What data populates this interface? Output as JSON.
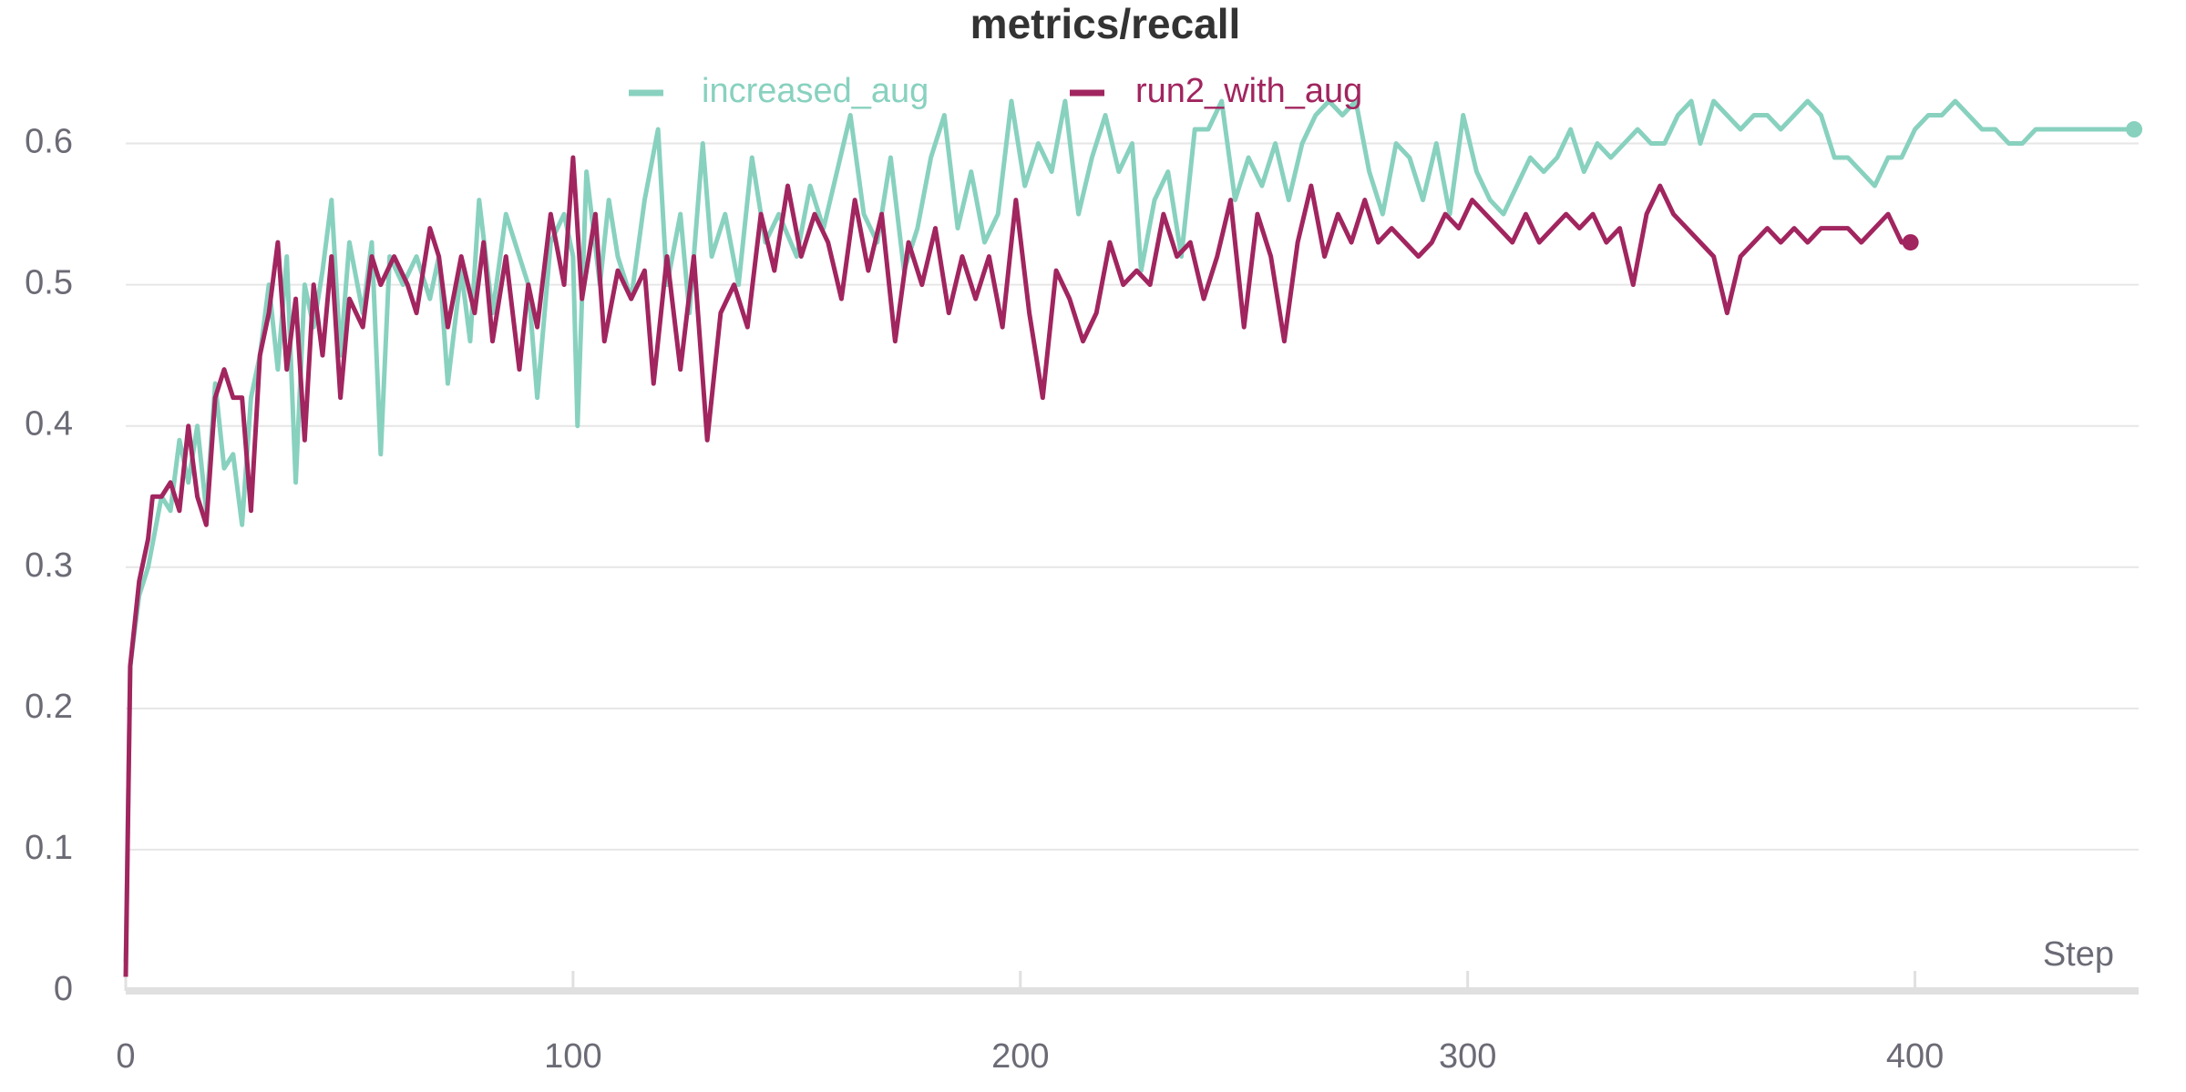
{
  "chart_data": {
    "type": "line",
    "title": "metrics/recall",
    "x_label": "Step",
    "xlim": [
      0,
      450
    ],
    "xticks": [
      0,
      100,
      200,
      300,
      400
    ],
    "ylim": [
      0,
      0.65
    ],
    "yticks": [
      0,
      0.1,
      0.2,
      0.3,
      0.4,
      0.5,
      0.6
    ],
    "grid": true,
    "series": [
      {
        "name": "increased_aug",
        "color": "#88d1bf",
        "x": [
          0,
          1,
          3,
          5,
          8,
          10,
          12,
          14,
          16,
          18,
          20,
          22,
          24,
          26,
          28,
          30,
          32,
          34,
          36,
          38,
          40,
          42,
          44,
          46,
          48,
          50,
          53,
          55,
          57,
          59,
          62,
          65,
          68,
          70,
          72,
          75,
          77,
          79,
          82,
          85,
          88,
          90,
          92,
          95,
          98,
          100,
          101,
          103,
          106,
          108,
          110,
          113,
          116,
          119,
          121,
          124,
          126,
          129,
          131,
          134,
          137,
          140,
          143,
          146,
          150,
          153,
          156,
          159,
          162,
          165,
          168,
          171,
          174,
          177,
          180,
          183,
          186,
          189,
          192,
          195,
          198,
          201,
          204,
          207,
          210,
          213,
          216,
          219,
          222,
          225,
          227,
          230,
          233,
          236,
          239,
          242,
          245,
          248,
          251,
          254,
          257,
          260,
          263,
          266,
          269,
          272,
          275,
          278,
          281,
          284,
          287,
          290,
          293,
          296,
          299,
          302,
          305,
          308,
          311,
          314,
          317,
          320,
          323,
          326,
          329,
          332,
          335,
          338,
          341,
          344,
          347,
          350,
          352,
          355,
          358,
          361,
          364,
          367,
          370,
          373,
          376,
          379,
          382,
          385,
          388,
          391,
          394,
          397,
          400,
          403,
          406,
          409,
          412,
          415,
          418,
          421,
          424,
          427,
          430,
          433,
          436,
          439,
          442,
          445,
          449
        ],
        "values": [
          0.02,
          0.23,
          0.28,
          0.3,
          0.35,
          0.34,
          0.39,
          0.36,
          0.4,
          0.34,
          0.43,
          0.37,
          0.38,
          0.33,
          0.42,
          0.45,
          0.5,
          0.44,
          0.52,
          0.36,
          0.5,
          0.47,
          0.51,
          0.56,
          0.45,
          0.53,
          0.48,
          0.53,
          0.38,
          0.52,
          0.5,
          0.52,
          0.49,
          0.52,
          0.43,
          0.51,
          0.46,
          0.56,
          0.48,
          0.55,
          0.52,
          0.5,
          0.42,
          0.53,
          0.55,
          0.52,
          0.4,
          0.58,
          0.5,
          0.56,
          0.52,
          0.49,
          0.56,
          0.61,
          0.5,
          0.55,
          0.48,
          0.6,
          0.52,
          0.55,
          0.5,
          0.59,
          0.53,
          0.55,
          0.52,
          0.57,
          0.54,
          0.58,
          0.62,
          0.55,
          0.53,
          0.59,
          0.51,
          0.54,
          0.59,
          0.62,
          0.54,
          0.58,
          0.53,
          0.55,
          0.63,
          0.57,
          0.6,
          0.58,
          0.63,
          0.55,
          0.59,
          0.62,
          0.58,
          0.6,
          0.51,
          0.56,
          0.58,
          0.52,
          0.61,
          0.61,
          0.63,
          0.56,
          0.59,
          0.57,
          0.6,
          0.56,
          0.6,
          0.62,
          0.63,
          0.62,
          0.63,
          0.58,
          0.55,
          0.6,
          0.59,
          0.56,
          0.6,
          0.55,
          0.62,
          0.58,
          0.56,
          0.55,
          0.57,
          0.59,
          0.58,
          0.59,
          0.61,
          0.58,
          0.6,
          0.59,
          0.6,
          0.61,
          0.6,
          0.6,
          0.62,
          0.63,
          0.6,
          0.63,
          0.62,
          0.61,
          0.62,
          0.62,
          0.61,
          0.62,
          0.63,
          0.62,
          0.59,
          0.59,
          0.58,
          0.57,
          0.59,
          0.59,
          0.61,
          0.62,
          0.62,
          0.63,
          0.62,
          0.61,
          0.61,
          0.6,
          0.6,
          0.61,
          0.61,
          0.61,
          0.61,
          0.61,
          0.61,
          0.61,
          0.61
        ]
      },
      {
        "name": "run2_with_aug",
        "color": "#a1255f",
        "x": [
          0,
          1,
          3,
          5,
          6,
          8,
          10,
          12,
          14,
          16,
          18,
          20,
          22,
          24,
          26,
          28,
          30,
          32,
          34,
          36,
          38,
          40,
          42,
          44,
          46,
          48,
          50,
          53,
          55,
          57,
          60,
          63,
          65,
          68,
          70,
          72,
          75,
          78,
          80,
          82,
          85,
          88,
          90,
          92,
          95,
          98,
          100,
          102,
          105,
          107,
          110,
          113,
          116,
          118,
          121,
          124,
          127,
          130,
          133,
          136,
          139,
          142,
          145,
          148,
          151,
          154,
          157,
          160,
          163,
          166,
          169,
          172,
          175,
          178,
          181,
          184,
          187,
          190,
          193,
          196,
          199,
          202,
          205,
          208,
          211,
          214,
          217,
          220,
          223,
          226,
          229,
          232,
          235,
          238,
          241,
          244,
          247,
          250,
          253,
          256,
          259,
          262,
          265,
          268,
          271,
          274,
          277,
          280,
          283,
          286,
          289,
          292,
          295,
          298,
          301,
          304,
          307,
          310,
          313,
          316,
          319,
          322,
          325,
          328,
          331,
          334,
          337,
          340,
          343,
          346,
          349,
          352,
          355,
          358,
          361,
          364,
          367,
          370,
          373,
          376,
          379,
          382,
          385,
          388,
          391,
          394,
          397,
          399
        ],
        "values": [
          0.01,
          0.23,
          0.29,
          0.32,
          0.35,
          0.35,
          0.36,
          0.34,
          0.4,
          0.35,
          0.33,
          0.42,
          0.44,
          0.42,
          0.42,
          0.34,
          0.45,
          0.48,
          0.53,
          0.44,
          0.49,
          0.39,
          0.5,
          0.45,
          0.52,
          0.42,
          0.49,
          0.47,
          0.52,
          0.5,
          0.52,
          0.5,
          0.48,
          0.54,
          0.52,
          0.47,
          0.52,
          0.48,
          0.53,
          0.46,
          0.52,
          0.44,
          0.5,
          0.47,
          0.55,
          0.5,
          0.59,
          0.49,
          0.55,
          0.46,
          0.51,
          0.49,
          0.51,
          0.43,
          0.52,
          0.44,
          0.52,
          0.39,
          0.48,
          0.5,
          0.47,
          0.55,
          0.51,
          0.57,
          0.52,
          0.55,
          0.53,
          0.49,
          0.56,
          0.51,
          0.55,
          0.46,
          0.53,
          0.5,
          0.54,
          0.48,
          0.52,
          0.49,
          0.52,
          0.47,
          0.56,
          0.48,
          0.42,
          0.51,
          0.49,
          0.46,
          0.48,
          0.53,
          0.5,
          0.51,
          0.5,
          0.55,
          0.52,
          0.53,
          0.49,
          0.52,
          0.56,
          0.47,
          0.55,
          0.52,
          0.46,
          0.53,
          0.57,
          0.52,
          0.55,
          0.53,
          0.56,
          0.53,
          0.54,
          0.53,
          0.52,
          0.53,
          0.55,
          0.54,
          0.56,
          0.55,
          0.54,
          0.53,
          0.55,
          0.53,
          0.54,
          0.55,
          0.54,
          0.55,
          0.53,
          0.54,
          0.5,
          0.55,
          0.57,
          0.55,
          0.54,
          0.53,
          0.52,
          0.48,
          0.52,
          0.53,
          0.54,
          0.53,
          0.54,
          0.53,
          0.54,
          0.54,
          0.54,
          0.53,
          0.54,
          0.55,
          0.53,
          0.53
        ]
      }
    ]
  }
}
